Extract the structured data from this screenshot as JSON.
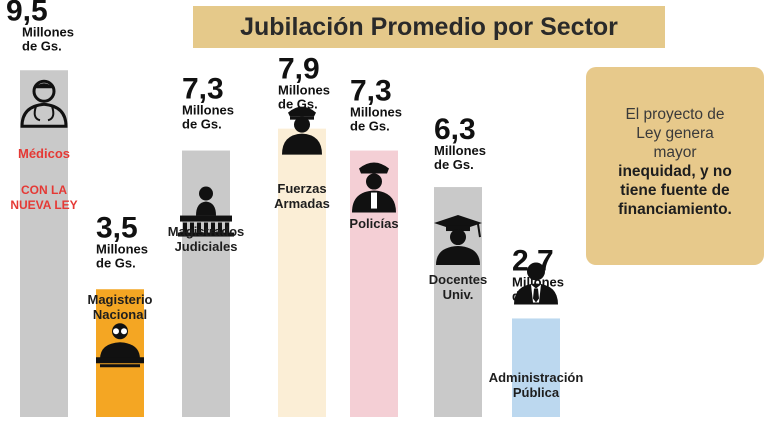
{
  "header": {
    "title": "Jubilación Promedio por Sector"
  },
  "note": {
    "line1": "El proyecto de",
    "line2": "Ley genera",
    "line3": "mayor",
    "line4": "inequidad, y no",
    "line5": "tiene fuente de",
    "line6": "financiamiento."
  },
  "chart_data": {
    "type": "bar",
    "title": "Jubilación Promedio por Sector",
    "unit": [
      "Millones",
      "de Gs."
    ],
    "xlabel": "",
    "ylabel": "",
    "ylim": [
      0,
      10
    ],
    "grid": false,
    "categories": [
      [
        "Médicos"
      ],
      [
        "Magisterio",
        "Nacional"
      ],
      [
        "Magistrados",
        "Judiciales"
      ],
      [
        "Fuerzas",
        "Armadas"
      ],
      [
        "Policías"
      ],
      [
        "Docentes",
        "Univ."
      ],
      [
        "Administración",
        "Pública"
      ]
    ],
    "values": [
      9.5,
      3.5,
      7.3,
      7.9,
      7.3,
      6.3,
      2.7
    ],
    "value_labels": [
      "9,5",
      "3,5",
      "7,3",
      "7,9",
      "7,3",
      "6,3",
      "2,7"
    ],
    "colors": [
      "#c9c9c9",
      "#f4a623",
      "#c9c9c9",
      "#fbeed6",
      "#f4cfd5",
      "#c9c9c9",
      "#bcd8ef"
    ],
    "icons": [
      "doctor-icon",
      "teacher-icon",
      "judge-icon",
      "military-officer-icon",
      "police-officer-icon",
      "graduate-icon",
      "businessman-icon"
    ],
    "annotations": [
      {
        "bar": 0,
        "lines": [
          "CON LA",
          "NUEVA LEY"
        ],
        "color": "#e53935"
      }
    ],
    "category_label_colors": [
      "#e53935",
      "#1e1e1e",
      "#1e1e1e",
      "#1e1e1e",
      "#1e1e1e",
      "#1e1e1e",
      "#1e1e1e"
    ]
  }
}
